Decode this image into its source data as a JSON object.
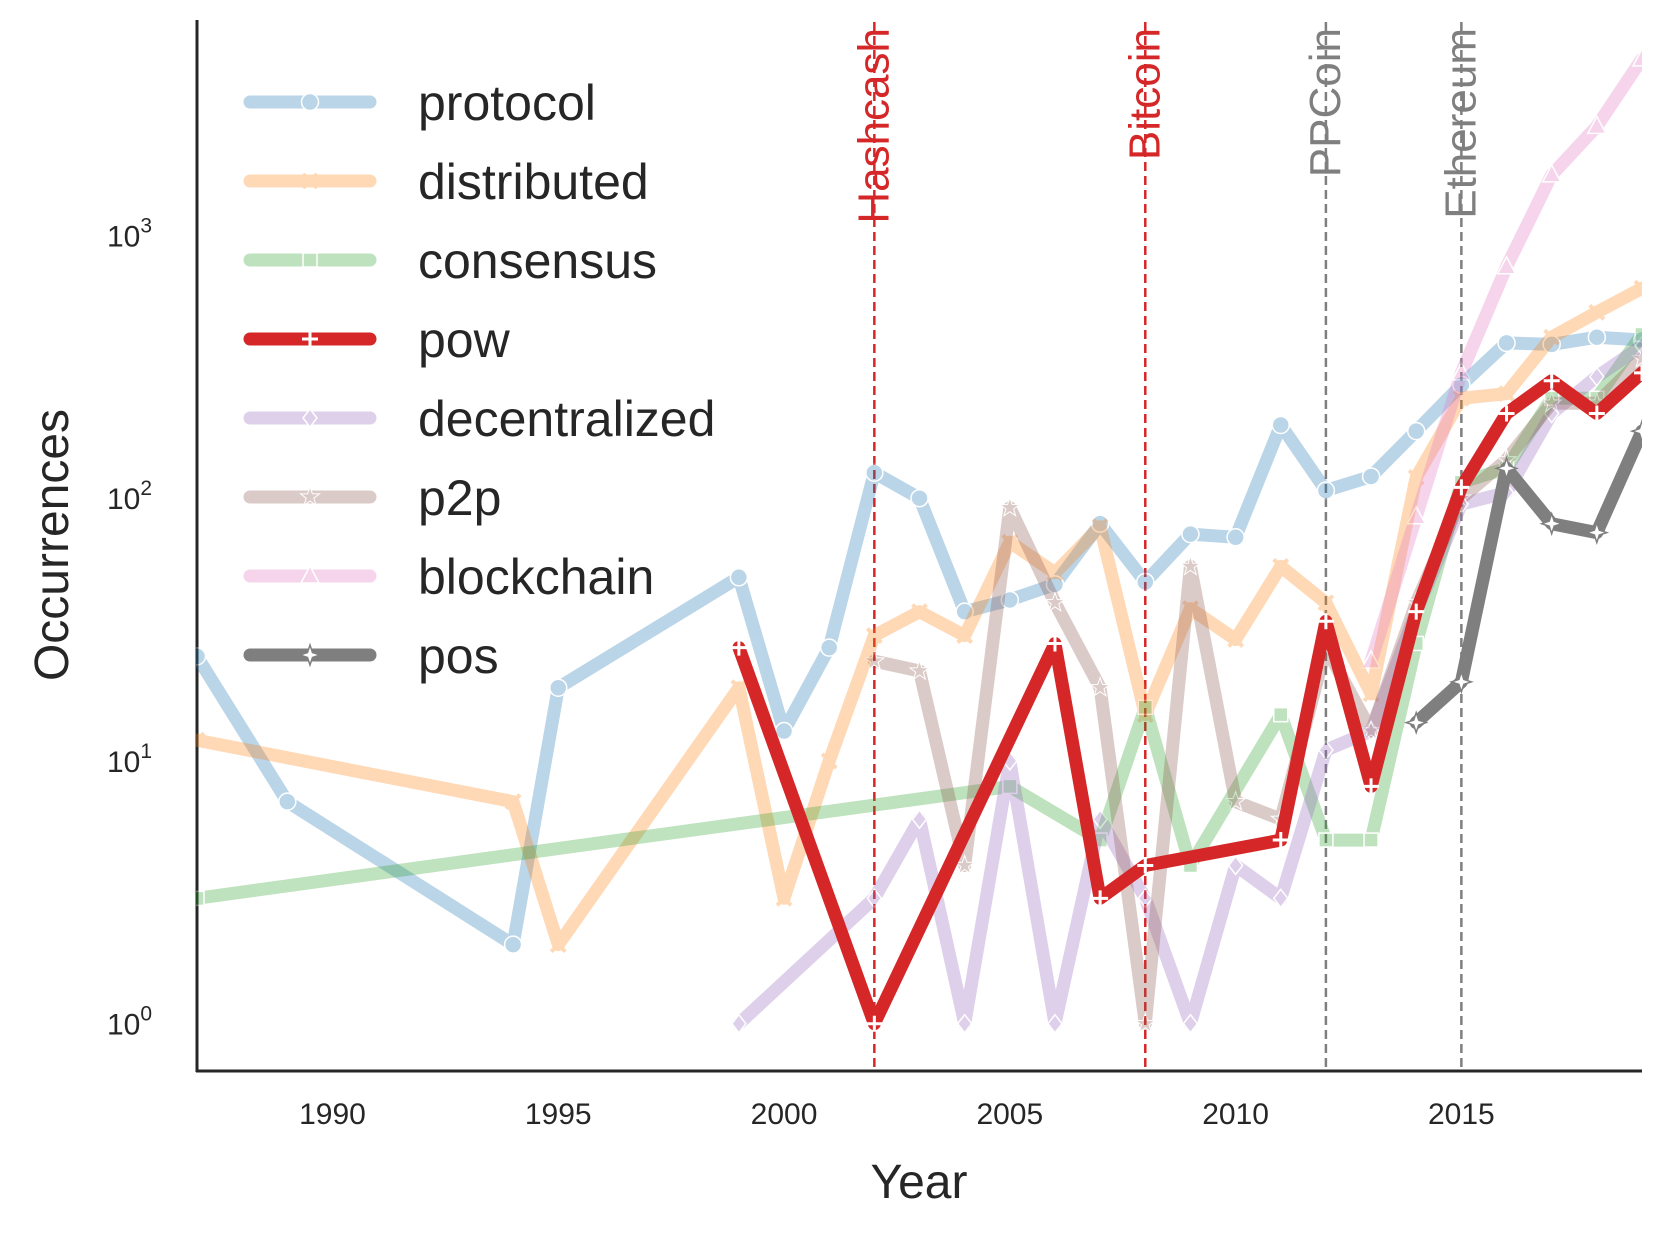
{
  "chart_data": {
    "type": "line",
    "xlabel": "Year",
    "ylabel": "Occurrences",
    "yscale": "log",
    "xlim": [
      1987,
      2019
    ],
    "ylim_exponent": [
      -0.18,
      3.82
    ],
    "grid": false,
    "legend_position": "top-left",
    "x_ticks": [
      1990,
      1995,
      2000,
      2005,
      2010,
      2015
    ],
    "y_ticks": [
      {
        "value": 1,
        "base": "10",
        "exp": "0"
      },
      {
        "value": 10,
        "base": "10",
        "exp": "1"
      },
      {
        "value": 100,
        "base": "10",
        "exp": "2"
      },
      {
        "value": 1000,
        "base": "10",
        "exp": "3"
      }
    ],
    "events": [
      {
        "year": 2002,
        "label": "Hashcash",
        "color": "#d62728"
      },
      {
        "year": 2008,
        "label": "Bitcoin",
        "color": "#d62728"
      },
      {
        "year": 2012,
        "label": "PPCoin",
        "color": "#7f7f7f"
      },
      {
        "year": 2015,
        "label": "Ethereum",
        "color": "#7f7f7f"
      }
    ],
    "series": [
      {
        "name": "protocol",
        "color": "#1f77b4",
        "marker": "circle",
        "highlight": false,
        "x": [
          1987,
          1989,
          1994,
          1995,
          1999,
          2000,
          2001,
          2002,
          2003,
          2004,
          2005,
          2006,
          2007,
          2008,
          2009,
          2010,
          2011,
          2012,
          2013,
          2014,
          2015,
          2016,
          2017,
          2018,
          2019
        ],
        "y": [
          25,
          7,
          2,
          19,
          50,
          13,
          27,
          125,
          100,
          37,
          41,
          47,
          80,
          48,
          73,
          71,
          190,
          107,
          121,
          180,
          270,
          390,
          385,
          410,
          400
        ]
      },
      {
        "name": "distributed",
        "color": "#ff7f0e",
        "marker": "x",
        "highlight": false,
        "x": [
          1987,
          1994,
          1995,
          1999,
          2000,
          2001,
          2002,
          2003,
          2004,
          2005,
          2006,
          2007,
          2008,
          2009,
          2010,
          2011,
          2012,
          2013,
          2014,
          2015,
          2016,
          2017,
          2018,
          2019
        ],
        "y": [
          12,
          7,
          2,
          19,
          3,
          10,
          30,
          37,
          30,
          68,
          52,
          78,
          15,
          38,
          29,
          55,
          40,
          18,
          120,
          240,
          250,
          410,
          510,
          630
        ]
      },
      {
        "name": "consensus",
        "color": "#2ca02c",
        "marker": "square",
        "highlight": false,
        "x": [
          1987,
          2005,
          2007,
          2008,
          2009,
          2011,
          2012,
          2013,
          2014,
          2015,
          2016,
          2017,
          2018,
          2019
        ],
        "y": [
          3,
          8,
          5,
          16,
          4,
          15,
          5,
          5,
          28,
          115,
          130,
          240,
          240,
          420
        ]
      },
      {
        "name": "pow",
        "color": "#d62728",
        "marker": "plus",
        "highlight": true,
        "x": [
          1999,
          2002,
          2006,
          2007,
          2008,
          2011,
          2012,
          2013,
          2014,
          2015,
          2016,
          2017,
          2018,
          2019
        ],
        "y": [
          27,
          1,
          28,
          3,
          4,
          5,
          34,
          8,
          37,
          110,
          210,
          280,
          210,
          300
        ]
      },
      {
        "name": "decentralized",
        "color": "#9467bd",
        "marker": "diamond",
        "highlight": false,
        "x": [
          1999,
          2002,
          2003,
          2004,
          2005,
          2006,
          2007,
          2008,
          2009,
          2010,
          2011,
          2012,
          2013,
          2014,
          2015,
          2016,
          2017,
          2018,
          2019
        ],
        "y": [
          1,
          3,
          6,
          1,
          10,
          1,
          6,
          3,
          1,
          4,
          3,
          11,
          13,
          37,
          95,
          105,
          210,
          290,
          380
        ]
      },
      {
        "name": "p2p",
        "color": "#8c564b",
        "marker": "star",
        "highlight": false,
        "x": [
          2002,
          2003,
          2004,
          2005,
          2006,
          2007,
          2008,
          2009,
          2010,
          2011,
          2012,
          2013,
          2014,
          2015,
          2016,
          2017,
          2018,
          2019
        ],
        "y": [
          24,
          22,
          4,
          92,
          40,
          19,
          1,
          55,
          7,
          6,
          27,
          13,
          40,
          100,
          140,
          230,
          230,
          340
        ]
      },
      {
        "name": "blockchain",
        "color": "#e377c2",
        "marker": "triangle",
        "highlight": false,
        "x": [
          2013,
          2014,
          2015,
          2016,
          2017,
          2018,
          2019
        ],
        "y": [
          24,
          85,
          300,
          760,
          1700,
          2600,
          4700
        ]
      },
      {
        "name": "pos",
        "color": "#7f7f7f",
        "marker": "fourstar",
        "highlight": true,
        "x": [
          2014,
          2015,
          2016,
          2017,
          2018,
          2019
        ],
        "y": [
          14,
          20,
          130,
          80,
          74,
          180
        ]
      }
    ]
  }
}
